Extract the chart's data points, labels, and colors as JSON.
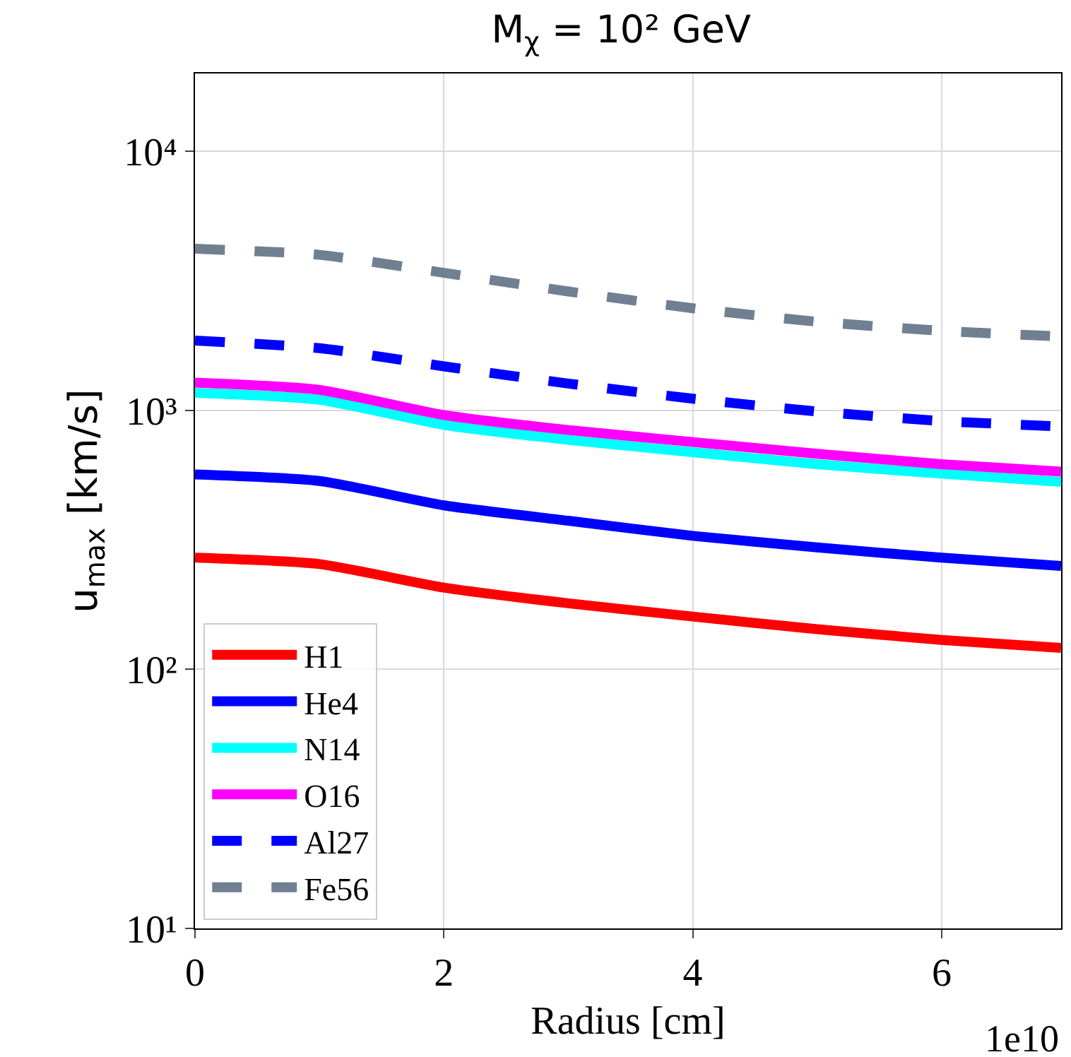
{
  "chart_data": {
    "type": "line",
    "title": "M$_{χ}$ = 10² GeV",
    "xlabel": "Radius [cm]",
    "ylabel": "u$_{max}$ [km/s]",
    "annotations": [
      "1e10"
    ],
    "x": [
      0,
      1,
      2,
      3,
      4,
      5,
      6,
      6.96
    ],
    "series": [
      {
        "name": "H1",
        "color": "#ff0000",
        "values": [
          270,
          255,
          207,
          180,
          160,
          143,
          130,
          121
        ]
      },
      {
        "name": "He4",
        "color": "#0000ff",
        "values": [
          566,
          534,
          430,
          375,
          328,
          296,
          270,
          251
        ]
      },
      {
        "name": "N14",
        "color": "#00ffff",
        "values": [
          1170,
          1100,
          880,
          770,
          690,
          620,
          570,
          530
        ]
      },
      {
        "name": "O16",
        "color": "#ff00ff",
        "values": [
          1280,
          1200,
          960,
          840,
          755,
          680,
          620,
          580
        ]
      },
      {
        "name": "Al27",
        "color": "#0000ff",
        "line_style": "dashed",
        "values": [
          1860,
          1740,
          1480,
          1270,
          1110,
          990,
          910,
          867
        ]
      },
      {
        "name": "Fe56",
        "color": "#708090",
        "line_style": "dashed",
        "values": [
          4210,
          3990,
          3400,
          2880,
          2480,
          2200,
          2030,
          1930
        ]
      }
    ],
    "log": "y",
    "xlim": [
      0,
      6.96
    ],
    "xticks": [
      0,
      2,
      4,
      6
    ],
    "ylim": [
      10,
      20000
    ],
    "yticks": [
      {
        "value": 10,
        "label": "10¹"
      },
      {
        "value": 100,
        "label": "10²"
      },
      {
        "value": 1000,
        "label": "10³"
      },
      {
        "value": 10000,
        "label": "10⁴"
      }
    ],
    "grid": true,
    "legend": "bottom left",
    "line_style": "solid",
    "marker": "none"
  }
}
